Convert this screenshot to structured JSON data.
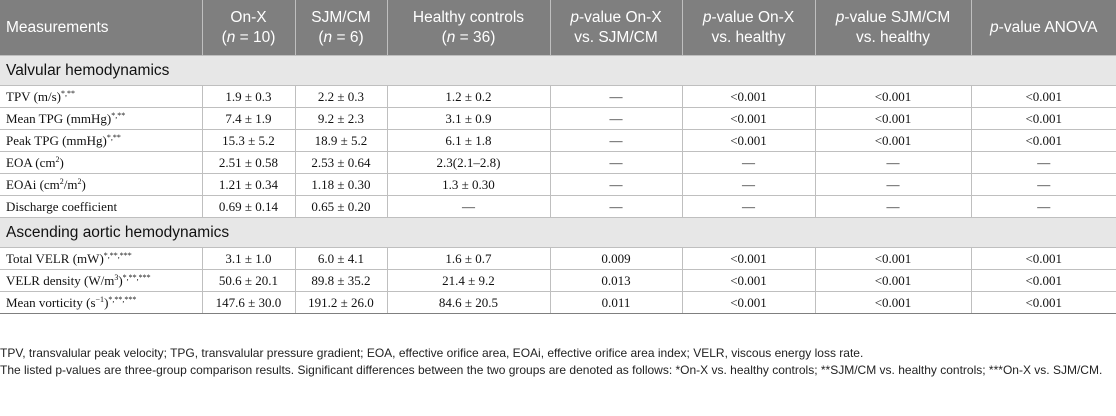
{
  "headers": [
    {
      "a": "Measurements",
      "b": ""
    },
    {
      "a": "On-X",
      "b": "(n = 10)"
    },
    {
      "a": "SJM/CM",
      "b": "(n = 6)"
    },
    {
      "a": "Healthy controls",
      "b": "(n = 36)"
    },
    {
      "a": "p-value On-X",
      "b": "vs. SJM/CM"
    },
    {
      "a": "p-value On-X",
      "b": "vs. healthy"
    },
    {
      "a": "p-value SJM/CM",
      "b": "vs. healthy"
    },
    {
      "a": "p-value ANOVA",
      "b": ""
    }
  ],
  "sections": [
    {
      "title": "Valvular hemodynamics",
      "rows": [
        {
          "label": "TPV (m/s)",
          "sup": "*,**",
          "cells": [
            "1.9 ± 0.3",
            "2.2 ± 0.3",
            "1.2 ± 0.2",
            "—",
            "<0.001",
            "<0.001",
            "<0.001"
          ]
        },
        {
          "label": "Mean TPG (mmHg)",
          "sup": "*,**",
          "cells": [
            "7.4 ± 1.9",
            "9.2 ± 2.3",
            "3.1 ± 0.9",
            "—",
            "<0.001",
            "<0.001",
            "<0.001"
          ]
        },
        {
          "label": "Peak TPG (mmHg)",
          "sup": "*,**",
          "cells": [
            "15.3 ± 5.2",
            "18.9 ± 5.2",
            "6.1 ± 1.8",
            "—",
            "<0.001",
            "<0.001",
            "<0.001"
          ]
        },
        {
          "label": "EOA (cm",
          "unit_sup": "2",
          "label_end": ")",
          "cells": [
            "2.51 ± 0.58",
            "2.53 ± 0.64",
            "2.3(2.1–2.8)",
            "—",
            "—",
            "—",
            "—"
          ]
        },
        {
          "label": "EOAi (cm",
          "unit_sup": "2",
          "label_end": "/m",
          "unit_sup2": "2",
          "label_end2": ")",
          "cells": [
            "1.21 ± 0.34",
            "1.18 ± 0.30",
            "1.3 ± 0.30",
            "—",
            "—",
            "—",
            "—"
          ]
        },
        {
          "label": "Discharge coefficient",
          "cells": [
            "0.69 ± 0.14",
            "0.65 ± 0.20",
            "—",
            "—",
            "—",
            "—",
            "—"
          ]
        }
      ]
    },
    {
      "title": "Ascending aortic hemodynamics",
      "rows": [
        {
          "label": "Total VELR (mW)",
          "sup": "*,**,***",
          "cells": [
            "3.1 ± 1.0",
            "6.0 ± 4.1",
            "1.6 ± 0.7",
            "0.009",
            "<0.001",
            "<0.001",
            "<0.001"
          ]
        },
        {
          "label": "VELR density (W/m",
          "unit_sup": "3",
          "label_end": ")",
          "sup": "*,**,***",
          "cells": [
            "50.6 ± 20.1",
            "89.8 ± 35.2",
            "21.4 ± 9.2",
            "0.013",
            "<0.001",
            "<0.001",
            "<0.001"
          ]
        },
        {
          "label": "Mean vorticity (s",
          "unit_sup": "−1",
          "label_end": ")",
          "sup": "*,**,***",
          "cells": [
            "147.6 ± 30.0",
            "191.2 ± 26.0",
            "84.6 ± 20.5",
            "0.011",
            "<0.001",
            "<0.001",
            "<0.001"
          ]
        }
      ]
    }
  ],
  "footnotes": [
    "TPV, transvalular peak velocity; TPG, transvalular pressure gradient; EOA, effective orifice area, EOAi, effective orifice area index; VELR, viscous energy loss rate.",
    "The listed p-values are three-group comparison results. Significant differences between the two groups are denoted as follows: *On-X vs. healthy controls; **SJM/CM vs. healthy controls; ***On-X vs. SJM/CM."
  ]
}
